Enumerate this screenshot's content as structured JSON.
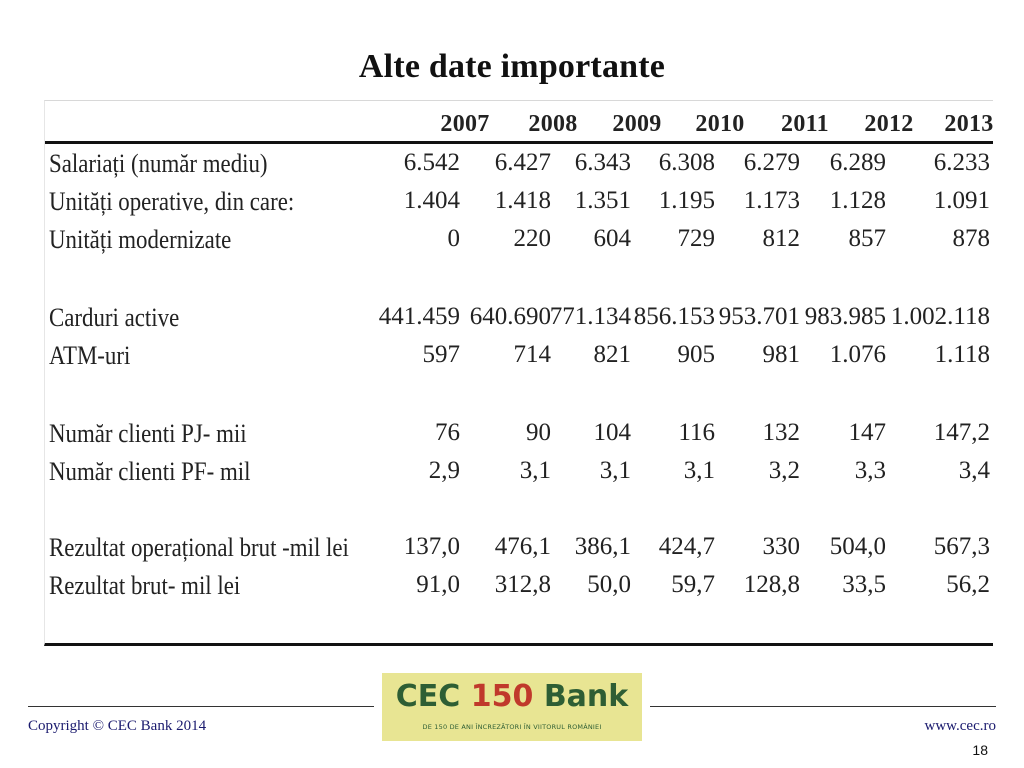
{
  "title": "Alte date importante",
  "table": {
    "years": [
      "2007",
      "2008",
      "2009",
      "2010",
      "2011",
      "2012",
      "2013"
    ],
    "rows": [
      {
        "label": "Salariați (număr mediu)",
        "values": [
          "6.542",
          "6.427",
          "6.343",
          "6.308",
          "6.279",
          "6.289",
          "6.233"
        ]
      },
      {
        "label": "Unități operative, din care:",
        "values": [
          "1.404",
          "1.418",
          "1.351",
          "1.195",
          "1.173",
          "1.128",
          "1.091"
        ]
      },
      {
        "label": "Unități modernizate",
        "values": [
          "0",
          "220",
          "604",
          "729",
          "812",
          "857",
          "878"
        ]
      },
      {
        "label": "Carduri active",
        "values": [
          "441.459",
          "640.690",
          "771.134",
          "856.153",
          "953.701",
          "983.985",
          "1.002.118"
        ]
      },
      {
        "label": "ATM-uri",
        "values": [
          "597",
          "714",
          "821",
          "905",
          "981",
          "1.076",
          "1.118"
        ]
      },
      {
        "label": "Număr clienti PJ- mii",
        "values": [
          "76",
          "90",
          "104",
          "116",
          "132",
          "147",
          "147,2"
        ]
      },
      {
        "label": "Număr clienti PF- mil",
        "values": [
          "2,9",
          "3,1",
          "3,1",
          "3,1",
          "3,2",
          "3,3",
          "3,4"
        ]
      },
      {
        "label": "Rezultat operațional brut -mil lei",
        "values": [
          "137,0",
          "476,1",
          "386,1",
          "424,7",
          "330",
          "504,0",
          "567,3"
        ]
      },
      {
        "label": "Rezultat brut- mil lei",
        "values": [
          "91,0",
          "312,8",
          "50,0",
          "59,7",
          "128,8",
          "33,5",
          "56,2"
        ]
      }
    ]
  },
  "footer": {
    "logo": {
      "left": "CEC",
      "number": "150",
      "right": "Bank",
      "tagline": "DE 150 DE ANI ÎNCREZĂTORI ÎN VIITORUL ROMÂNIEI"
    },
    "copyright": "Copyright © CEC Bank 2014",
    "website": "www.cec.ro",
    "page_number": "18"
  }
}
